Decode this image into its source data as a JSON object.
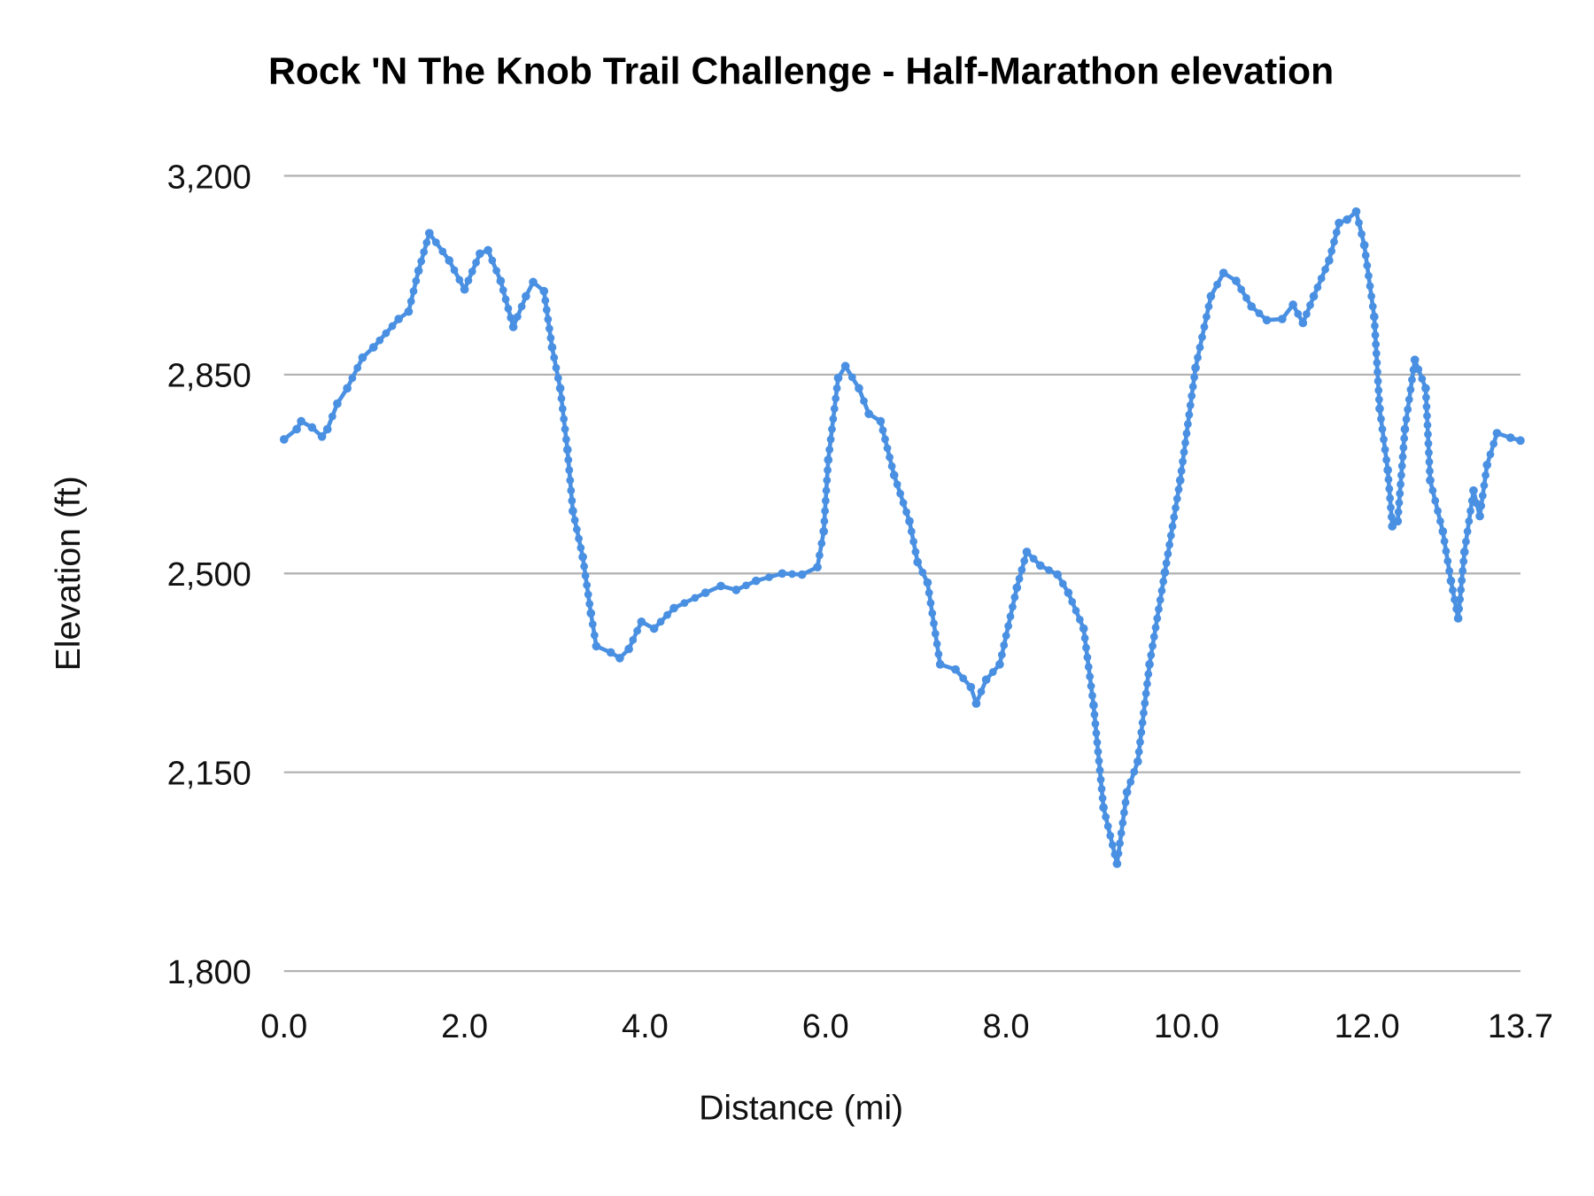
{
  "chart_data": {
    "type": "line",
    "title": "Rock 'N The Knob Trail Challenge - Half-Marathon elevation",
    "xlabel": "Distance (mi)",
    "ylabel": "Elevation (ft)",
    "xlim": [
      0,
      13.7
    ],
    "ylim": [
      1800,
      3200
    ],
    "x_ticks": [
      "0.0",
      "2.0",
      "4.0",
      "6.0",
      "8.0",
      "10.0",
      "12.0",
      "13.7"
    ],
    "x_tick_values": [
      0,
      2,
      4,
      6,
      8,
      10,
      12,
      13.7
    ],
    "y_ticks": [
      "1,800",
      "2,150",
      "2,500",
      "2,850",
      "3,200"
    ],
    "y_tick_values": [
      1800,
      2150,
      2500,
      2850,
      3200
    ],
    "grid": "horizontal",
    "markers": true,
    "line_color": "#4a90e2",
    "series": [
      {
        "x": [
          0,
          0.14,
          0.19,
          0.31,
          0.42,
          0.48,
          0.59,
          0.7,
          0.87,
          0.99,
          1.27,
          1.38,
          1.49,
          1.61,
          1.83,
          2.0,
          2.17,
          2.26,
          2.4,
          2.54,
          2.68,
          2.76,
          2.88,
          2.97,
          3.06,
          3.14,
          3.2,
          3.31,
          3.4,
          3.46,
          3.62,
          3.72,
          3.82,
          3.96,
          4.1,
          4.32,
          4.67,
          4.84,
          5.01,
          5.23,
          5.52,
          5.74,
          5.91,
          5.98,
          6.03,
          6.14,
          6.22,
          6.37,
          6.48,
          6.61,
          6.76,
          6.93,
          7.02,
          7.13,
          7.27,
          7.44,
          7.61,
          7.67,
          7.78,
          7.93,
          8.12,
          8.23,
          8.38,
          8.57,
          8.69,
          8.86,
          8.97,
          9.08,
          9.23,
          9.34,
          9.46,
          9.59,
          9.76,
          9.93,
          10.1,
          10.27,
          10.41,
          10.55,
          10.72,
          10.89,
          11.06,
          11.18,
          11.29,
          11.41,
          11.58,
          11.69,
          11.78,
          11.88,
          11.97,
          12.08,
          12.14,
          12.23,
          12.28,
          12.34,
          12.42,
          12.53,
          12.65,
          12.7,
          12.84,
          12.93,
          13.01,
          13.08,
          13.18,
          13.25,
          13.33,
          13.44,
          13.59,
          13.7
        ],
        "y": [
          2736,
          2754,
          2768,
          2757,
          2741,
          2754,
          2799,
          2826,
          2880,
          2898,
          2948,
          2961,
          3033,
          3099,
          3051,
          3000,
          3063,
          3069,
          3015,
          2934,
          2988,
          3013,
          2997,
          2898,
          2826,
          2718,
          2610,
          2529,
          2430,
          2372,
          2361,
          2351,
          2367,
          2415,
          2403,
          2439,
          2466,
          2478,
          2471,
          2487,
          2500,
          2498,
          2511,
          2574,
          2700,
          2844,
          2865,
          2826,
          2781,
          2768,
          2673,
          2592,
          2520,
          2484,
          2340,
          2331,
          2300,
          2271,
          2313,
          2340,
          2475,
          2538,
          2514,
          2498,
          2466,
          2403,
          2268,
          2088,
          1989,
          2115,
          2169,
          2340,
          2502,
          2664,
          2862,
          2988,
          3029,
          3015,
          2970,
          2946,
          2948,
          2973,
          2941,
          2988,
          3051,
          3117,
          3123,
          3137,
          3078,
          2952,
          2790,
          2682,
          2583,
          2592,
          2754,
          2876,
          2826,
          2664,
          2574,
          2487,
          2421,
          2538,
          2646,
          2601,
          2691,
          2747,
          2739,
          2734
        ]
      }
    ]
  }
}
